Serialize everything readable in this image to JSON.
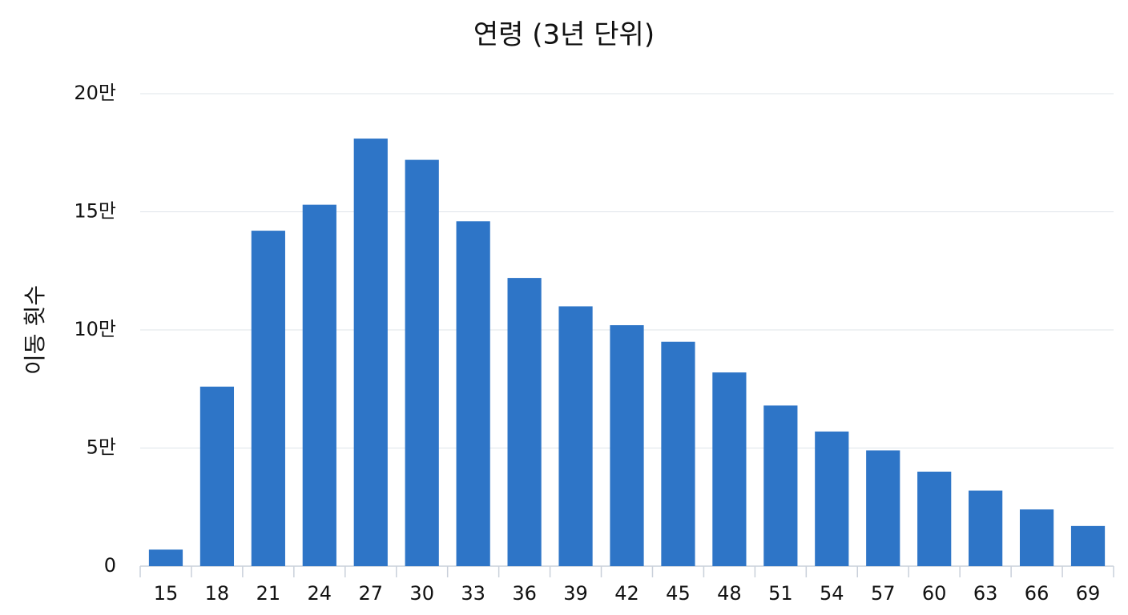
{
  "chart_data": {
    "type": "bar",
    "title": "연령 (3년 단위)",
    "y_label": "이동 횟수",
    "categories": [
      "15",
      "18",
      "21",
      "24",
      "27",
      "30",
      "33",
      "36",
      "39",
      "42",
      "45",
      "48",
      "51",
      "54",
      "57",
      "60",
      "63",
      "66",
      "69"
    ],
    "values": [
      7000,
      76000,
      142000,
      153000,
      181000,
      172000,
      146000,
      122000,
      110000,
      102000,
      95000,
      82000,
      68000,
      57000,
      49000,
      40000,
      32000,
      24000,
      17000
    ],
    "color": "#2e75c7",
    "ylim": [
      0,
      200000
    ],
    "yticks": [
      0,
      {
        "value": 50000,
        "label": "5만"
      },
      {
        "value": 100000,
        "label": "10만"
      },
      {
        "value": 150000,
        "label": "15만"
      },
      {
        "value": 200000,
        "label": "20만"
      }
    ],
    "grid": true
  }
}
